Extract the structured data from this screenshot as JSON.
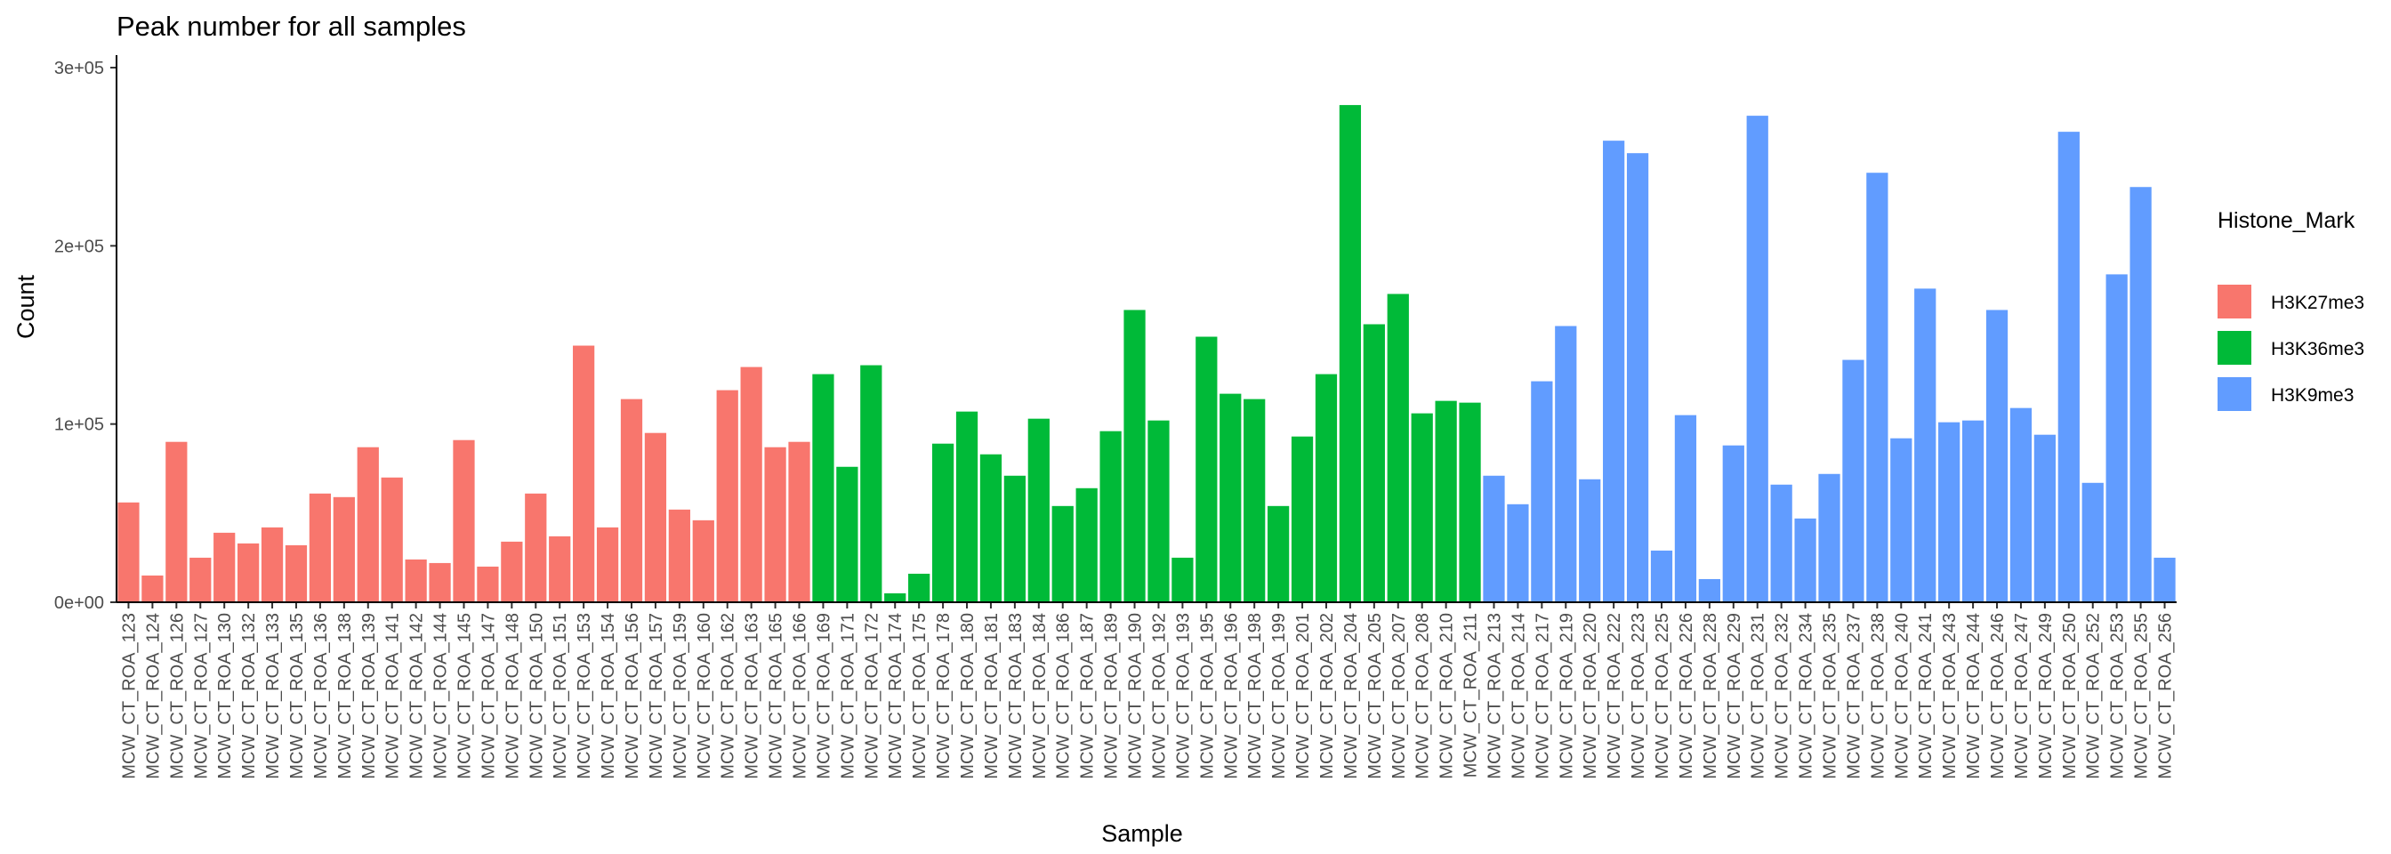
{
  "chart_data": {
    "type": "bar",
    "title": "Peak number for all samples",
    "x_label": "Sample",
    "y_label": "Count",
    "legend_title": "Histone_Mark",
    "legend_position": "right",
    "grid": false,
    "categories": [
      "MCW_CT_ROA_123",
      "MCW_CT_ROA_124",
      "MCW_CT_ROA_126",
      "MCW_CT_ROA_127",
      "MCW_CT_ROA_130",
      "MCW_CT_ROA_132",
      "MCW_CT_ROA_133",
      "MCW_CT_ROA_135",
      "MCW_CT_ROA_136",
      "MCW_CT_ROA_138",
      "MCW_CT_ROA_139",
      "MCW_CT_ROA_141",
      "MCW_CT_ROA_142",
      "MCW_CT_ROA_144",
      "MCW_CT_ROA_145",
      "MCW_CT_ROA_147",
      "MCW_CT_ROA_148",
      "MCW_CT_ROA_150",
      "MCW_CT_ROA_151",
      "MCW_CT_ROA_153",
      "MCW_CT_ROA_154",
      "MCW_CT_ROA_156",
      "MCW_CT_ROA_157",
      "MCW_CT_ROA_159",
      "MCW_CT_ROA_160",
      "MCW_CT_ROA_162",
      "MCW_CT_ROA_163",
      "MCW_CT_ROA_165",
      "MCW_CT_ROA_166",
      "MCW_CT_ROA_169",
      "MCW_CT_ROA_171",
      "MCW_CT_ROA_172",
      "MCW_CT_ROA_174",
      "MCW_CT_ROA_175",
      "MCW_CT_ROA_178",
      "MCW_CT_ROA_180",
      "MCW_CT_ROA_181",
      "MCW_CT_ROA_183",
      "MCW_CT_ROA_184",
      "MCW_CT_ROA_186",
      "MCW_CT_ROA_187",
      "MCW_CT_ROA_189",
      "MCW_CT_ROA_190",
      "MCW_CT_ROA_192",
      "MCW_CT_ROA_193",
      "MCW_CT_ROA_195",
      "MCW_CT_ROA_196",
      "MCW_CT_ROA_198",
      "MCW_CT_ROA_199",
      "MCW_CT_ROA_201",
      "MCW_CT_ROA_202",
      "MCW_CT_ROA_204",
      "MCW_CT_ROA_205",
      "MCW_CT_ROA_207",
      "MCW_CT_ROA_208",
      "MCW_CT_ROA_210",
      "MCW_CT_ROA_211",
      "MCW_CT_ROA_213",
      "MCW_CT_ROA_214",
      "MCW_CT_ROA_217",
      "MCW_CT_ROA_219",
      "MCW_CT_ROA_220",
      "MCW_CT_ROA_222",
      "MCW_CT_ROA_223",
      "MCW_CT_ROA_225",
      "MCW_CT_ROA_226",
      "MCW_CT_ROA_228",
      "MCW_CT_ROA_229",
      "MCW_CT_ROA_231",
      "MCW_CT_ROA_232",
      "MCW_CT_ROA_234",
      "MCW_CT_ROA_235",
      "MCW_CT_ROA_237",
      "MCW_CT_ROA_238",
      "MCW_CT_ROA_240",
      "MCW_CT_ROA_241",
      "MCW_CT_ROA_243",
      "MCW_CT_ROA_244",
      "MCW_CT_ROA_246",
      "MCW_CT_ROA_247",
      "MCW_CT_ROA_249",
      "MCW_CT_ROA_250",
      "MCW_CT_ROA_252",
      "MCW_CT_ROA_253",
      "MCW_CT_ROA_255",
      "MCW_CT_ROA_256"
    ],
    "series": [
      {
        "name": "H3K27me3",
        "color": "#f8766d",
        "values": [
          56000,
          15000,
          90000,
          25000,
          39000,
          33000,
          42000,
          32000,
          61000,
          59000,
          87000,
          70000,
          24000,
          22000,
          91000,
          20000,
          34000,
          61000,
          37000,
          144000,
          42000,
          114000,
          95000,
          52000,
          46000,
          119000,
          132000,
          87000,
          90000,
          null,
          null,
          null,
          null,
          null,
          null,
          null,
          null,
          null,
          null,
          null,
          null,
          null,
          null,
          null,
          null,
          null,
          null,
          null,
          null,
          null,
          null,
          null,
          null,
          null,
          null,
          null,
          null,
          null,
          null,
          null,
          null,
          null,
          null,
          null,
          null,
          null,
          null,
          null,
          null,
          null,
          null,
          null,
          null,
          null,
          null,
          null,
          null,
          null,
          null,
          null,
          null,
          null,
          null,
          null,
          null,
          null
        ]
      },
      {
        "name": "H3K36me3",
        "color": "#00ba38",
        "values": [
          null,
          null,
          null,
          null,
          null,
          null,
          null,
          null,
          null,
          null,
          null,
          null,
          null,
          null,
          null,
          null,
          null,
          null,
          null,
          null,
          null,
          null,
          null,
          null,
          null,
          null,
          null,
          null,
          null,
          128000,
          76000,
          133000,
          5000,
          16000,
          89000,
          107000,
          83000,
          71000,
          103000,
          54000,
          64000,
          96000,
          164000,
          102000,
          25000,
          149000,
          117000,
          114000,
          54000,
          93000,
          128000,
          279000,
          156000,
          173000,
          106000,
          113000,
          112000,
          null,
          null,
          null,
          null,
          null,
          null,
          null,
          null,
          null,
          null,
          null,
          null,
          null,
          null,
          null,
          null,
          null,
          null,
          null,
          null,
          null,
          null,
          null,
          null,
          null,
          null,
          null,
          null,
          null
        ]
      },
      {
        "name": "H3K9me3",
        "color": "#619cff",
        "values": [
          null,
          null,
          null,
          null,
          null,
          null,
          null,
          null,
          null,
          null,
          null,
          null,
          null,
          null,
          null,
          null,
          null,
          null,
          null,
          null,
          null,
          null,
          null,
          null,
          null,
          null,
          null,
          null,
          null,
          null,
          null,
          null,
          null,
          null,
          null,
          null,
          null,
          null,
          null,
          null,
          null,
          null,
          null,
          null,
          null,
          null,
          null,
          null,
          null,
          null,
          null,
          null,
          null,
          null,
          null,
          null,
          null,
          71000,
          55000,
          124000,
          155000,
          69000,
          259000,
          252000,
          29000,
          105000,
          13000,
          88000,
          273000,
          66000,
          47000,
          72000,
          136000,
          241000,
          92000,
          176000,
          101000,
          102000,
          164000,
          109000,
          94000,
          264000,
          67000,
          184000,
          233000,
          25000
        ]
      }
    ],
    "ylim": [
      0,
      307000
    ],
    "yticks": [
      {
        "value": 0,
        "label": "0e+00"
      },
      {
        "value": 100000,
        "label": "1e+05"
      },
      {
        "value": 200000,
        "label": "2e+05"
      },
      {
        "value": 300000,
        "label": "3e+05"
      }
    ]
  }
}
